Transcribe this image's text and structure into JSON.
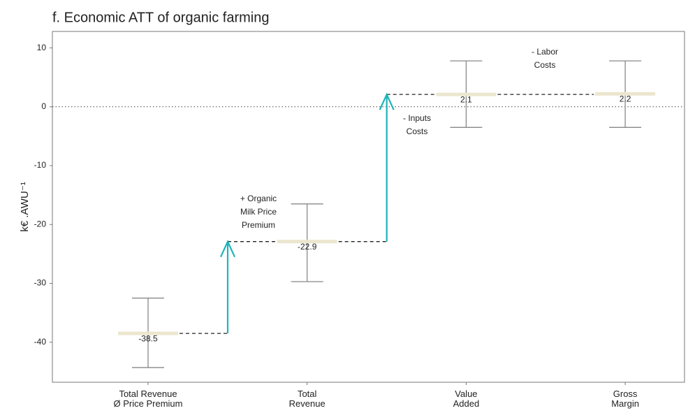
{
  "chart_data": {
    "type": "waterfall",
    "title": "f. Economic ATT of organic farming",
    "ylabel": "k€ .AWU⁻¹",
    "categories": [
      [
        "Total Revenue",
        "Ø Price Premium"
      ],
      [
        "Total",
        "Revenue"
      ],
      [
        "Value",
        "Added"
      ],
      [
        "Gross",
        "Margin"
      ]
    ],
    "values": [
      -38.5,
      -22.9,
      2.1,
      2.2
    ],
    "upper": [
      -32.5,
      -16.5,
      7.8,
      7.8
    ],
    "lower": [
      -44.3,
      -29.7,
      -3.5,
      -3.5
    ],
    "annotations": [
      [
        "+ Organic",
        "Milk Price",
        "Premium"
      ],
      [
        "- Inputs",
        "Costs"
      ],
      [
        "- Labor",
        "Costs"
      ]
    ],
    "ylim": [
      -46.8,
      12.8
    ],
    "yticks": [
      10,
      0,
      -10,
      -20,
      -30,
      -40
    ],
    "reference_line": 0,
    "color": "#ece6cf",
    "arrow_color": "#1fb5b8",
    "errorbar_color": "#888888"
  }
}
